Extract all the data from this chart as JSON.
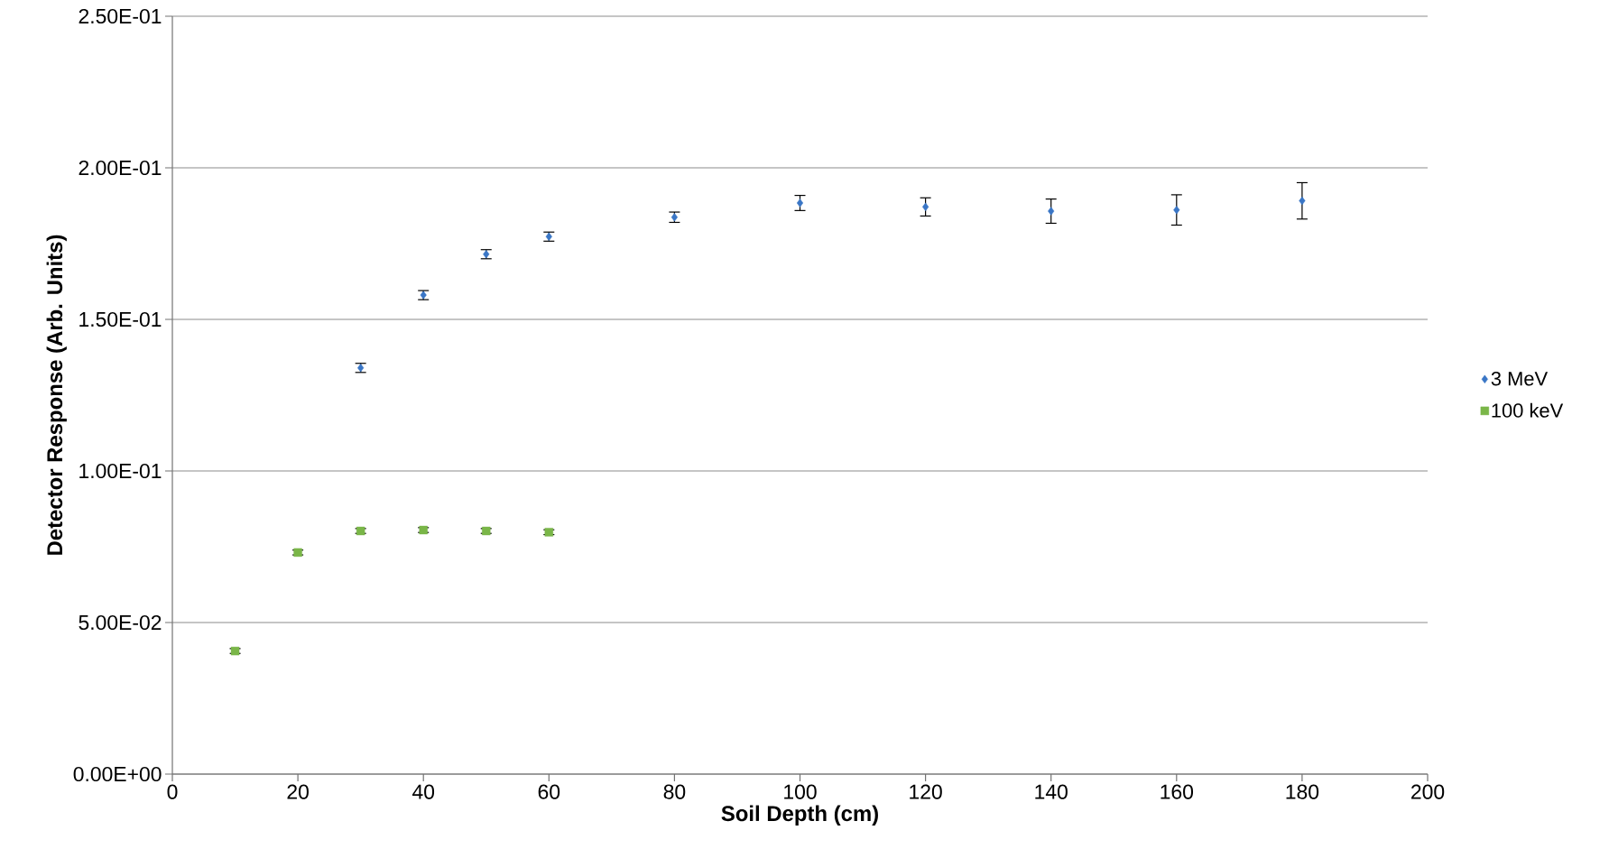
{
  "chart_data": {
    "type": "scatter",
    "xlabel": "Soil Depth (cm)",
    "ylabel": "Detector Response (Arb. Units)",
    "xlim": [
      0,
      200
    ],
    "xticks": [
      0,
      20,
      40,
      60,
      80,
      100,
      120,
      140,
      160,
      180,
      200
    ],
    "ylim": [
      0,
      0.25
    ],
    "yticks": [
      {
        "value": 0,
        "label": "0.00E+00"
      },
      {
        "value": 0.05,
        "label": "5.00E-02"
      },
      {
        "value": 0.1,
        "label": "1.00E-01"
      },
      {
        "value": 0.15,
        "label": "1.50E-01"
      },
      {
        "value": 0.2,
        "label": "2.00E-01"
      },
      {
        "value": 0.25,
        "label": "2.50E-01"
      }
    ],
    "grid": "y",
    "legend": "right",
    "series": [
      {
        "name": "3 MeV",
        "color": "#3a76c6",
        "marker": "diamond",
        "x": [
          30,
          40,
          50,
          60,
          80,
          100,
          120,
          140,
          160,
          180
        ],
        "values": [
          0.134,
          0.158,
          0.1715,
          0.1773,
          0.1837,
          0.1884,
          0.1871,
          0.1857,
          0.1861,
          0.1891
        ],
        "errors": [
          0.0015,
          0.0015,
          0.0015,
          0.0015,
          0.0017,
          0.0025,
          0.003,
          0.004,
          0.005,
          0.006
        ]
      },
      {
        "name": "100 keV",
        "color": "#7ab648",
        "marker": "square",
        "x": [
          10,
          20,
          30,
          40,
          50,
          60
        ],
        "values": [
          0.0406,
          0.0731,
          0.0802,
          0.0805,
          0.0802,
          0.0798
        ],
        "errors": [
          0.0008,
          0.0008,
          0.0008,
          0.0008,
          0.0008,
          0.0008
        ]
      }
    ]
  }
}
